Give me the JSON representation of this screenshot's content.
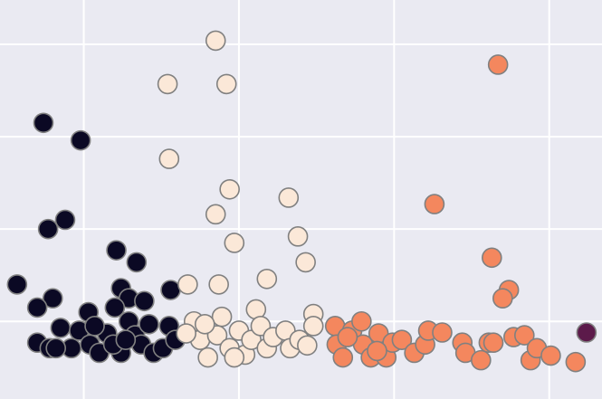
{
  "chart_data": {
    "type": "scatter",
    "title": "",
    "xlabel": "",
    "ylabel": "",
    "xlim": [
      0.46,
      4.34
    ],
    "ylim": [
      0.16,
      4.48
    ],
    "grid": true,
    "grid_x": [
      1,
      2,
      3,
      4
    ],
    "grid_y": [
      1,
      2,
      3,
      4
    ],
    "background_color": "#eaeaf2",
    "grid_color": "#ffffff",
    "marker_edge_color": "#808080",
    "series": [
      {
        "color": "#0b0924",
        "points": [
          [
            0.74,
            3.15
          ],
          [
            0.98,
            2.96
          ],
          [
            0.88,
            2.1
          ],
          [
            0.77,
            2.0
          ],
          [
            1.21,
            1.77
          ],
          [
            1.34,
            1.64
          ],
          [
            0.57,
            1.4
          ],
          [
            0.8,
            1.25
          ],
          [
            0.7,
            1.15
          ],
          [
            1.56,
            1.34
          ],
          [
            1.24,
            1.36
          ],
          [
            1.29,
            1.25
          ],
          [
            1.39,
            1.22
          ],
          [
            1.03,
            1.1
          ],
          [
            0.7,
            0.77
          ],
          [
            0.78,
            0.71
          ],
          [
            0.85,
            0.93
          ],
          [
            0.92,
            0.71
          ],
          [
            0.97,
            0.9
          ],
          [
            1.04,
            0.75
          ],
          [
            1.1,
            0.66
          ],
          [
            1.15,
            0.87
          ],
          [
            1.2,
            1.15
          ],
          [
            1.24,
            0.66
          ],
          [
            1.29,
            1.0
          ],
          [
            1.33,
            0.85
          ],
          [
            1.37,
            0.75
          ],
          [
            1.42,
            0.97
          ],
          [
            1.45,
            0.66
          ],
          [
            1.51,
            0.71
          ],
          [
            1.55,
            0.95
          ],
          [
            1.59,
            0.8
          ],
          [
            1.07,
            0.95
          ],
          [
            1.19,
            0.75
          ],
          [
            1.27,
            0.8
          ],
          [
            0.82,
            0.71
          ]
        ]
      },
      {
        "color": "#fbe8d8",
        "points": [
          [
            1.85,
            4.04
          ],
          [
            1.54,
            3.57
          ],
          [
            1.92,
            3.57
          ],
          [
            1.55,
            2.76
          ],
          [
            1.94,
            2.43
          ],
          [
            2.32,
            2.34
          ],
          [
            1.85,
            2.16
          ],
          [
            2.38,
            1.92
          ],
          [
            1.97,
            1.85
          ],
          [
            2.43,
            1.64
          ],
          [
            2.18,
            1.46
          ],
          [
            1.67,
            1.4
          ],
          [
            1.87,
            1.4
          ],
          [
            2.11,
            1.13
          ],
          [
            2.48,
            1.08
          ],
          [
            1.71,
            1.0
          ],
          [
            1.75,
            0.8
          ],
          [
            1.8,
            0.61
          ],
          [
            1.86,
            0.85
          ],
          [
            1.89,
            1.05
          ],
          [
            1.94,
            0.71
          ],
          [
            2.0,
            0.9
          ],
          [
            2.04,
            0.64
          ],
          [
            2.08,
            0.8
          ],
          [
            2.14,
            0.95
          ],
          [
            2.18,
            0.71
          ],
          [
            2.22,
            0.83
          ],
          [
            2.3,
            0.9
          ],
          [
            2.33,
            0.71
          ],
          [
            2.39,
            0.8
          ],
          [
            2.44,
            0.74
          ],
          [
            2.48,
            0.95
          ],
          [
            1.66,
            0.87
          ],
          [
            1.97,
            0.61
          ],
          [
            1.78,
            0.97
          ]
        ]
      },
      {
        "color": "#f4875e",
        "points": [
          [
            3.67,
            3.78
          ],
          [
            3.26,
            2.27
          ],
          [
            3.63,
            1.69
          ],
          [
            3.74,
            1.34
          ],
          [
            3.7,
            1.25
          ],
          [
            2.62,
            0.95
          ],
          [
            2.63,
            0.75
          ],
          [
            2.67,
            0.61
          ],
          [
            2.73,
            0.9
          ],
          [
            2.79,
            1.0
          ],
          [
            2.8,
            0.75
          ],
          [
            2.85,
            0.61
          ],
          [
            2.9,
            0.87
          ],
          [
            2.95,
            0.61
          ],
          [
            2.99,
            0.77
          ],
          [
            3.05,
            0.8
          ],
          [
            3.13,
            0.66
          ],
          [
            3.2,
            0.75
          ],
          [
            3.22,
            0.9
          ],
          [
            3.31,
            0.88
          ],
          [
            3.44,
            0.77
          ],
          [
            3.46,
            0.66
          ],
          [
            3.56,
            0.58
          ],
          [
            3.61,
            0.77
          ],
          [
            3.64,
            0.77
          ],
          [
            3.77,
            0.83
          ],
          [
            3.84,
            0.85
          ],
          [
            3.88,
            0.58
          ],
          [
            3.92,
            0.71
          ],
          [
            4.01,
            0.63
          ],
          [
            4.17,
            0.56
          ],
          [
            2.7,
            0.83
          ],
          [
            2.89,
            0.68
          ]
        ]
      },
      {
        "color": "#5c1a4a",
        "points": [
          [
            4.24,
            0.88
          ]
        ]
      }
    ]
  }
}
